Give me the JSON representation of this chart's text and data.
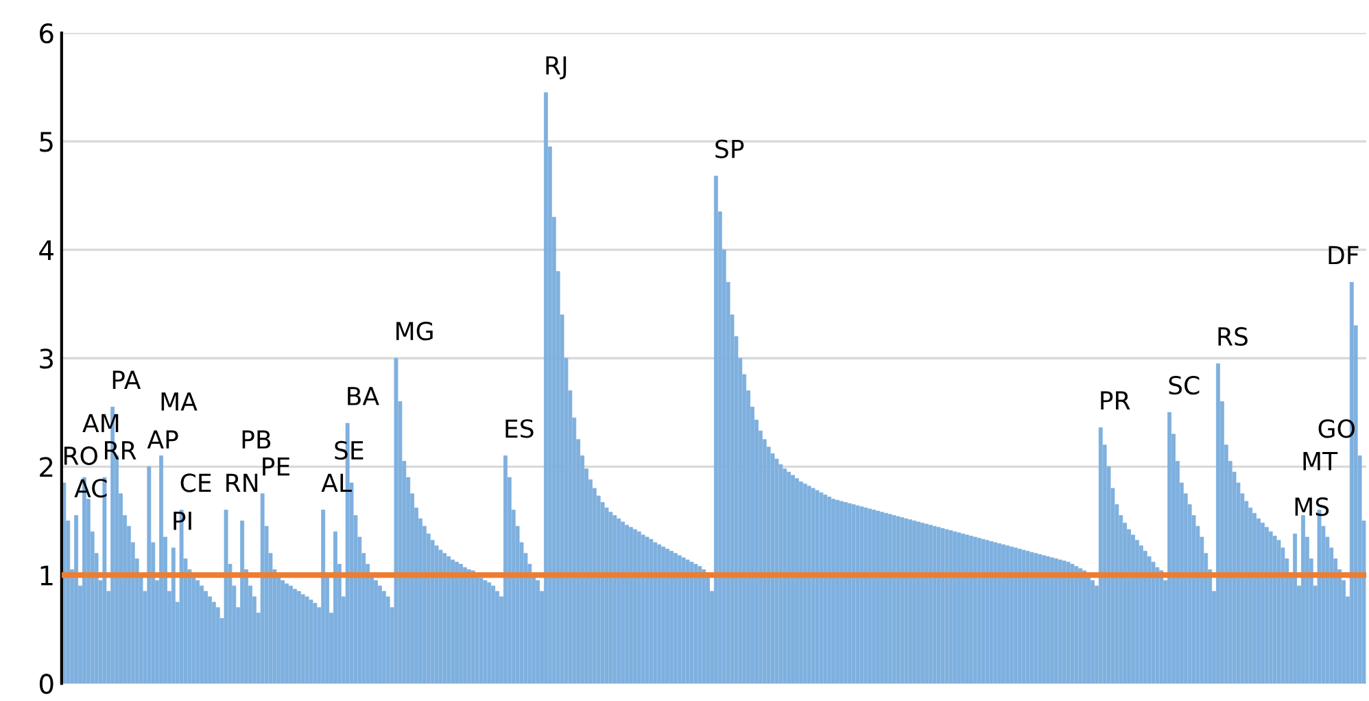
{
  "chart_data": {
    "type": "bar",
    "color": "#7eb0df",
    "categories": [
      null,
      null,
      null,
      null,
      null,
      null,
      null,
      null,
      null,
      null,
      null,
      null,
      null,
      null,
      null,
      null,
      null,
      null,
      null,
      null,
      null,
      null,
      null,
      null,
      null,
      null,
      null,
      null,
      null,
      null,
      null,
      null,
      null,
      null,
      null,
      null,
      null,
      null,
      null,
      null,
      null,
      null,
      null,
      null,
      null,
      null,
      null,
      null,
      null,
      null,
      null,
      null,
      null,
      null,
      null,
      null,
      null,
      null,
      null,
      null,
      null,
      null,
      null,
      null,
      null,
      null,
      null,
      null,
      null,
      null,
      null,
      null,
      null,
      null,
      null,
      null,
      null,
      null,
      null,
      null,
      null,
      null,
      null,
      null,
      null,
      null,
      null,
      null,
      null,
      null,
      null,
      null,
      null,
      null,
      null,
      null,
      null,
      null,
      null,
      null,
      null,
      null,
      null,
      null,
      null,
      null,
      null,
      null,
      null,
      null,
      null,
      null,
      null,
      null,
      null,
      null,
      null,
      null,
      null,
      null,
      null,
      null,
      null,
      null,
      null,
      null,
      null,
      null,
      null,
      null,
      null,
      null,
      null,
      null,
      null,
      null,
      null,
      null,
      null,
      null,
      null,
      null,
      null,
      null,
      null,
      null,
      null,
      null,
      null,
      null,
      null,
      null,
      null,
      null,
      null,
      null,
      null,
      null,
      null,
      null,
      null,
      null,
      null,
      null,
      null,
      null,
      null,
      null,
      null,
      null,
      null,
      null,
      null,
      null,
      null,
      null,
      null,
      null,
      null,
      null,
      null,
      null,
      null,
      null,
      null,
      null,
      null,
      null,
      null,
      null,
      null,
      null,
      null,
      null,
      null,
      null,
      null,
      null,
      null,
      null,
      null,
      null,
      null,
      null,
      null,
      null,
      null,
      null,
      null,
      null,
      null,
      null,
      null,
      null,
      null,
      null,
      null,
      null,
      null,
      null,
      null,
      null,
      null,
      null,
      null,
      null,
      null,
      null,
      null,
      null,
      null,
      null,
      null,
      null,
      null,
      null,
      null,
      null,
      null,
      null,
      null,
      null,
      null,
      null,
      null,
      null,
      null,
      null,
      null,
      null,
      null,
      null,
      null,
      null,
      null,
      null,
      null,
      null,
      null,
      null,
      null,
      null,
      null,
      null,
      null,
      null,
      null,
      null,
      null,
      null,
      null,
      null,
      null,
      null,
      null,
      null,
      null,
      null,
      null,
      null,
      null,
      null,
      null,
      null,
      null,
      null,
      null,
      null,
      null,
      null,
      null,
      null,
      null,
      null,
      null,
      null,
      null,
      null,
      null,
      null,
      null,
      null,
      null,
      null,
      null,
      null,
      null,
      null,
      null,
      null,
      null,
      null,
      null,
      null,
      null,
      null,
      null,
      null,
      null,
      null,
      null,
      null
    ],
    "values": [
      1.85,
      1.5,
      1.05,
      1.55,
      0.9,
      1.9,
      1.7,
      1.4,
      1.2,
      0.95,
      1.9,
      0.85,
      2.55,
      2.1,
      1.75,
      1.55,
      1.45,
      1.3,
      1.15,
      1.0,
      0.85,
      2.0,
      1.3,
      0.95,
      2.1,
      1.35,
      0.85,
      1.25,
      0.75,
      1.6,
      1.15,
      1.05,
      1.0,
      0.95,
      0.9,
      0.85,
      0.8,
      0.75,
      0.7,
      0.6,
      1.6,
      1.1,
      0.9,
      0.7,
      1.5,
      1.05,
      0.9,
      0.8,
      0.65,
      1.75,
      1.45,
      1.2,
      1.05,
      1.0,
      0.95,
      0.92,
      0.9,
      0.87,
      0.85,
      0.82,
      0.8,
      0.77,
      0.74,
      0.7,
      1.6,
      1.0,
      0.65,
      1.4,
      1.1,
      0.8,
      2.4,
      1.85,
      1.55,
      1.35,
      1.2,
      1.1,
      1.0,
      0.95,
      0.9,
      0.85,
      0.8,
      0.7,
      3.0,
      2.6,
      2.05,
      1.9,
      1.75,
      1.62,
      1.52,
      1.45,
      1.38,
      1.32,
      1.27,
      1.23,
      1.2,
      1.17,
      1.14,
      1.12,
      1.1,
      1.07,
      1.05,
      1.04,
      1.0,
      0.97,
      0.95,
      0.93,
      0.9,
      0.85,
      0.8,
      2.1,
      1.9,
      1.6,
      1.45,
      1.3,
      1.2,
      1.1,
      1.0,
      0.95,
      0.85,
      5.45,
      4.95,
      4.3,
      3.8,
      3.4,
      3.0,
      2.7,
      2.45,
      2.25,
      2.1,
      1.98,
      1.88,
      1.8,
      1.73,
      1.67,
      1.62,
      1.58,
      1.55,
      1.52,
      1.49,
      1.46,
      1.44,
      1.42,
      1.4,
      1.37,
      1.35,
      1.33,
      1.3,
      1.28,
      1.26,
      1.24,
      1.22,
      1.2,
      1.18,
      1.16,
      1.14,
      1.12,
      1.1,
      1.08,
      1.05,
      1.0,
      0.85,
      4.68,
      4.35,
      4.0,
      3.7,
      3.4,
      3.2,
      3.0,
      2.85,
      2.7,
      2.55,
      2.43,
      2.33,
      2.25,
      2.18,
      2.12,
      2.07,
      2.02,
      1.98,
      1.95,
      1.92,
      1.89,
      1.86,
      1.84,
      1.82,
      1.8,
      1.78,
      1.76,
      1.74,
      1.72,
      1.7,
      1.69,
      1.68,
      1.67,
      1.66,
      1.65,
      1.64,
      1.63,
      1.62,
      1.61,
      1.6,
      1.59,
      1.58,
      1.57,
      1.56,
      1.55,
      1.54,
      1.53,
      1.52,
      1.51,
      1.5,
      1.49,
      1.48,
      1.47,
      1.46,
      1.45,
      1.44,
      1.43,
      1.42,
      1.41,
      1.4,
      1.39,
      1.38,
      1.37,
      1.36,
      1.35,
      1.34,
      1.33,
      1.32,
      1.31,
      1.3,
      1.29,
      1.28,
      1.27,
      1.26,
      1.25,
      1.24,
      1.23,
      1.22,
      1.21,
      1.2,
      1.19,
      1.18,
      1.17,
      1.16,
      1.15,
      1.14,
      1.13,
      1.12,
      1.1,
      1.08,
      1.06,
      1.04,
      1.0,
      0.95,
      0.9,
      2.36,
      2.2,
      2.0,
      1.8,
      1.65,
      1.55,
      1.48,
      1.42,
      1.37,
      1.32,
      1.27,
      1.22,
      1.17,
      1.12,
      1.07,
      1.04,
      0.95,
      2.5,
      2.3,
      2.05,
      1.85,
      1.75,
      1.65,
      1.55,
      1.45,
      1.35,
      1.2,
      1.05,
      0.85,
      2.95,
      2.6,
      2.2,
      2.05,
      1.95,
      1.85,
      1.75,
      1.68,
      1.62,
      1.57,
      1.52,
      1.48,
      1.44,
      1.4,
      1.36,
      1.32,
      1.25,
      1.15,
      1.0,
      1.38,
      0.9,
      1.55,
      1.35,
      1.15,
      0.9,
      1.6,
      1.45,
      1.35,
      1.25,
      1.15,
      1.05,
      0.95,
      0.8,
      3.7,
      3.3,
      2.1,
      1.5
    ],
    "annotations": [
      "RO",
      "AC",
      "AM",
      "RR",
      "PA",
      "AP",
      "MA",
      "PI",
      "CE",
      "RN",
      "PB",
      "PE",
      "AL",
      "SE",
      "BA",
      "MG",
      "ES",
      "RJ",
      "SP",
      "PR",
      "SC",
      "RS",
      "MS",
      "MT",
      "GO",
      "DF"
    ],
    "ylim": [
      0,
      6
    ],
    "yticks": [
      0,
      1,
      2,
      3,
      4,
      5,
      6
    ],
    "grid": "y",
    "tick_labels": "y",
    "ref_lines": [
      {
        "axis": "y",
        "value": 1,
        "color": "#ed7d31"
      }
    ]
  }
}
